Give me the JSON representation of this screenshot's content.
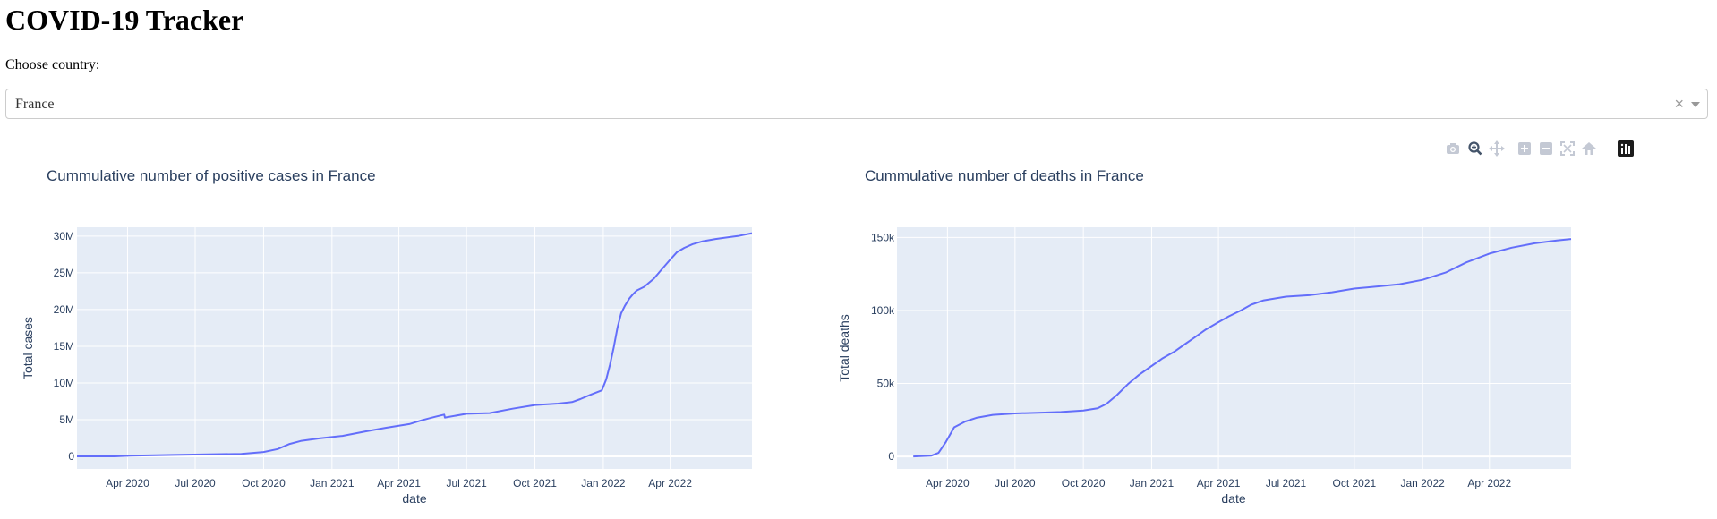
{
  "app": {
    "title": "COVID-19 Tracker",
    "choose_label": "Choose country:",
    "selected_country": "France",
    "clear_symbol": "×"
  },
  "modebar": {
    "icons": [
      "camera-icon",
      "zoom-icon",
      "pan-icon",
      "zoom-in-icon",
      "zoom-out-icon",
      "autoscale-icon",
      "reset-axes-icon",
      "plotly-logo-icon"
    ]
  },
  "colors": {
    "line": "#636efa",
    "plot_bg": "#e5ecf6",
    "grid": "#ffffff",
    "text": "#2a3f5f"
  },
  "chart_data": [
    {
      "type": "line",
      "title": "Cummulative number of positive cases in France",
      "xlabel": "date",
      "ylabel": "Total cases",
      "xlim": [
        "2020-01-24",
        "2022-07-20"
      ],
      "ylim": [
        -1700000,
        31200000
      ],
      "x_ticks": [
        "2020-04-01",
        "2020-07-01",
        "2020-10-01",
        "2021-01-01",
        "2021-04-01",
        "2021-07-01",
        "2021-10-01",
        "2022-01-01",
        "2022-04-01"
      ],
      "x_tick_labels": [
        "Apr 2020",
        "Jul 2020",
        "Oct 2020",
        "Jan 2021",
        "Apr 2021",
        "Jul 2021",
        "Oct 2021",
        "Jan 2022",
        "Apr 2022"
      ],
      "y_ticks": [
        0,
        5000000,
        10000000,
        15000000,
        20000000,
        25000000,
        30000000
      ],
      "y_tick_labels": [
        "0",
        "5M",
        "10M",
        "15M",
        "20M",
        "25M",
        "30M"
      ],
      "grid": true,
      "series": [
        {
          "x": [
            "2020-01-24",
            "2020-03-15",
            "2020-04-05",
            "2020-06-01",
            "2020-09-01",
            "2020-10-01",
            "2020-10-20",
            "2020-11-05",
            "2020-11-20",
            "2020-12-15",
            "2021-01-15",
            "2021-02-15",
            "2021-03-15",
            "2021-04-15",
            "2021-05-01",
            "2021-05-20",
            "2021-06-01",
            "2021-06-02",
            "2021-07-01",
            "2021-08-01",
            "2021-09-01",
            "2021-10-01",
            "2021-11-01",
            "2021-11-20",
            "2021-12-01",
            "2021-12-15",
            "2021-12-30",
            "2022-01-05",
            "2022-01-10",
            "2022-01-15",
            "2022-01-20",
            "2022-01-25",
            "2022-01-30",
            "2022-02-05",
            "2022-02-10",
            "2022-02-15",
            "2022-02-25",
            "2022-03-10",
            "2022-03-20",
            "2022-04-01",
            "2022-04-10",
            "2022-04-20",
            "2022-05-01",
            "2022-05-15",
            "2022-06-01",
            "2022-06-15",
            "2022-07-01",
            "2022-07-20"
          ],
          "y": [
            10,
            10000,
            100000,
            200000,
            350000,
            600000,
            1000000,
            1700000,
            2100000,
            2450000,
            2800000,
            3400000,
            3900000,
            4400000,
            4900000,
            5400000,
            5700000,
            5300000,
            5800000,
            5900000,
            6500000,
            7000000,
            7200000,
            7400000,
            7800000,
            8400000,
            9000000,
            10500000,
            12500000,
            14800000,
            17500000,
            19500000,
            20500000,
            21500000,
            22100000,
            22600000,
            23100000,
            24200000,
            25400000,
            26800000,
            27800000,
            28400000,
            28900000,
            29300000,
            29600000,
            29800000,
            30000000,
            30400000
          ]
        }
      ]
    },
    {
      "type": "line",
      "title": "Cummulative number of deaths in France",
      "xlabel": "date",
      "ylabel": "Total deaths",
      "xlim": [
        "2020-01-24",
        "2022-07-20"
      ],
      "ylim": [
        -8500,
        157000
      ],
      "x_ticks": [
        "2020-04-01",
        "2020-07-01",
        "2020-10-01",
        "2021-01-01",
        "2021-04-01",
        "2021-07-01",
        "2021-10-01",
        "2022-01-01",
        "2022-04-01"
      ],
      "x_tick_labels": [
        "Apr 2020",
        "Jul 2020",
        "Oct 2020",
        "Jan 2021",
        "Apr 2021",
        "Jul 2021",
        "Oct 2021",
        "Jan 2022",
        "Apr 2022"
      ],
      "y_ticks": [
        0,
        50000,
        100000,
        150000
      ],
      "y_tick_labels": [
        "0",
        "50k",
        "100k",
        "150k"
      ],
      "grid": true,
      "series": [
        {
          "x": [
            "2020-02-15",
            "2020-03-10",
            "2020-03-20",
            "2020-03-30",
            "2020-04-10",
            "2020-04-25",
            "2020-05-10",
            "2020-06-01",
            "2020-07-01",
            "2020-08-01",
            "2020-09-01",
            "2020-10-01",
            "2020-10-20",
            "2020-11-01",
            "2020-11-15",
            "2020-12-01",
            "2020-12-15",
            "2021-01-01",
            "2021-01-15",
            "2021-02-01",
            "2021-02-15",
            "2021-03-01",
            "2021-03-15",
            "2021-04-01",
            "2021-04-15",
            "2021-05-01",
            "2021-05-15",
            "2021-06-01",
            "2021-07-01",
            "2021-08-01",
            "2021-09-01",
            "2021-10-01",
            "2021-11-01",
            "2021-12-01",
            "2022-01-01",
            "2022-02-01",
            "2022-03-01",
            "2022-04-01",
            "2022-05-01",
            "2022-06-01",
            "2022-07-01",
            "2022-07-20"
          ],
          "y": [
            0,
            500,
            2500,
            10000,
            20000,
            24000,
            26500,
            28500,
            29500,
            30000,
            30500,
            31500,
            33000,
            36000,
            42000,
            50000,
            56000,
            62000,
            67000,
            72000,
            77000,
            82000,
            87000,
            92000,
            96000,
            100000,
            104000,
            107000,
            109500,
            110500,
            112500,
            115000,
            116500,
            118000,
            121000,
            126000,
            133000,
            139000,
            143000,
            146000,
            148000,
            149000
          ]
        }
      ]
    }
  ]
}
